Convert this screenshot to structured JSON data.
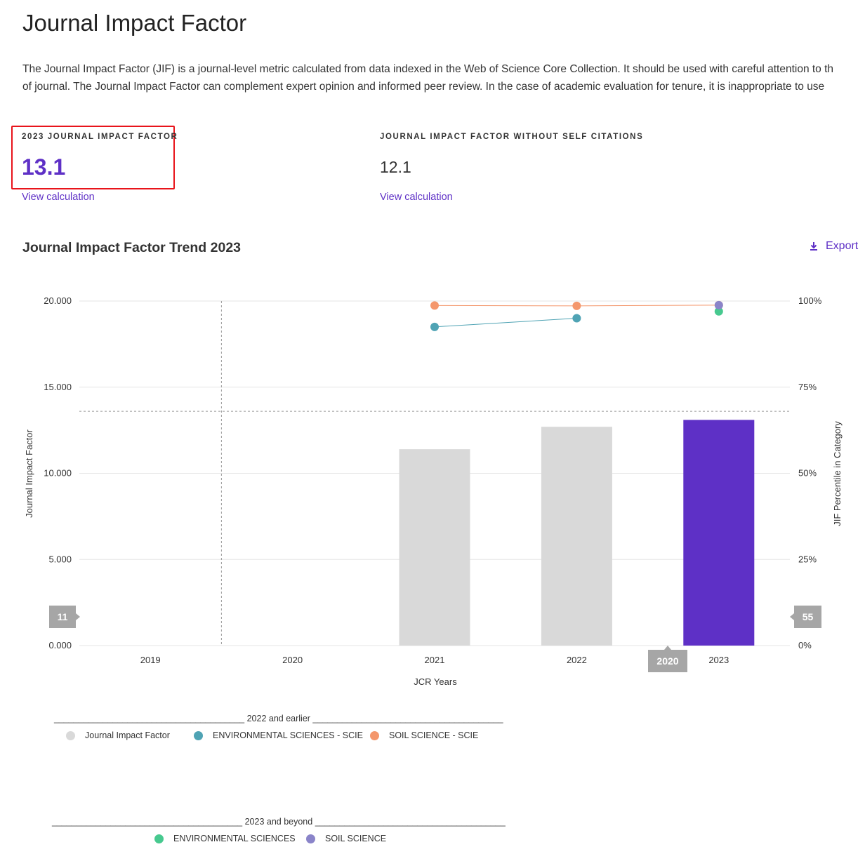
{
  "header": {
    "title": "Journal Impact Factor",
    "intro_line1": "The Journal Impact Factor (JIF) is a journal-level metric calculated from data indexed in the Web of Science Core Collection. It should be used with careful attention to th",
    "intro_line2": "of journal. The Journal Impact Factor can complement expert opinion and informed peer review. In the case of academic evaluation for tenure, it is inappropriate to use"
  },
  "metrics": {
    "jif_label": "2023 JOURNAL IMPACT FACTOR",
    "jif_value": "13.1",
    "jif_link": "View calculation",
    "nosc_label": "JOURNAL IMPACT FACTOR WITHOUT SELF CITATIONS",
    "nosc_value": "12.1",
    "nosc_link": "View calculation"
  },
  "trend": {
    "title": "Journal Impact Factor Trend 2023",
    "export_label": "Export",
    "export_icon": "download-icon"
  },
  "colors": {
    "accent": "#5e30c6",
    "bar_prior": "#d9d9d9",
    "bar_current": "#5e30c6",
    "env_scie": "#4fa3b4",
    "soil_scie": "#f4976c",
    "env": "#47c98f",
    "soil": "#8a84c9",
    "highlight": "#e8141b"
  },
  "chart_data": {
    "type": "bar",
    "categories": [
      "2019",
      "2020",
      "2021",
      "2022",
      "2023"
    ],
    "xlabel": "JCR Years",
    "ylabel": "Journal Impact Factor",
    "y2label": "JIF Percentile in Category",
    "ylim": [
      0,
      20
    ],
    "y2lim": [
      0,
      100
    ],
    "y_ticks": [
      "0.000",
      "5.000",
      "10.000",
      "15.000",
      "20.000"
    ],
    "y2_ticks": [
      "0%",
      "25%",
      "50%",
      "75%",
      "100%"
    ],
    "bars": [
      null,
      null,
      11.4,
      12.7,
      13.1
    ],
    "reference_line": 13.6,
    "divider_after": "2020",
    "series": [
      {
        "name": "ENVIRONMENTAL SCIENCES - SCIE",
        "type": "line",
        "percentiles": [
          null,
          null,
          92.5,
          95,
          null
        ],
        "color": "#4fa3b4"
      },
      {
        "name": "SOIL SCIENCE - SCIE",
        "type": "line",
        "percentiles": [
          null,
          null,
          98.7,
          98.6,
          98.8
        ],
        "color": "#f4976c"
      },
      {
        "name": "ENVIRONMENTAL SCIENCES",
        "type": "point",
        "percentiles": [
          null,
          null,
          null,
          null,
          97
        ],
        "color": "#47c98f"
      },
      {
        "name": "SOIL SCIENCE",
        "type": "point",
        "percentiles": [
          null,
          null,
          null,
          null,
          98.8
        ],
        "color": "#8a84c9"
      }
    ],
    "left_marker": "11",
    "right_marker": "55",
    "bottom_marker": "2020"
  },
  "legend": {
    "group1_title": "_______________________________________ 2022 and earlier _______________________________________",
    "group1_items": [
      {
        "label": "Journal Impact Factor",
        "color": "#d9d9d9"
      },
      {
        "label": "ENVIRONMENTAL SCIENCES - SCIE",
        "color": "#4fa3b4"
      },
      {
        "label": "SOIL SCIENCE - SCIE",
        "color": "#f4976c"
      }
    ],
    "group2_title": "_______________________________________ 2023 and beyond _______________________________________",
    "group2_items": [
      {
        "label": "ENVIRONMENTAL SCIENCES",
        "color": "#47c98f"
      },
      {
        "label": "SOIL SCIENCE",
        "color": "#8a84c9"
      }
    ]
  }
}
